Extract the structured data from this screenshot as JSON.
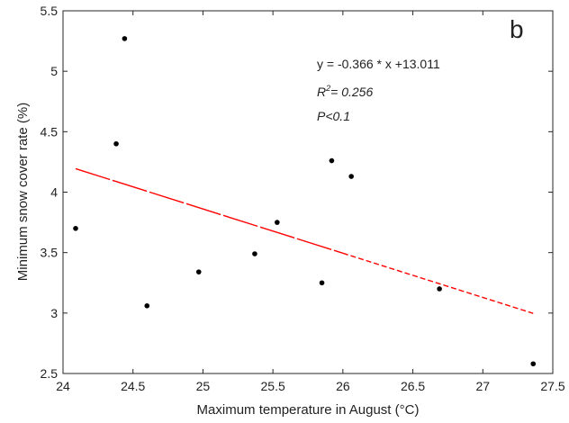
{
  "chart_data": {
    "type": "scatter",
    "panel_label": "b",
    "xlabel": "Maximum temperature in August (°C)",
    "ylabel": "Minimum snow cover rate (%)",
    "xlim": [
      24,
      27.5
    ],
    "ylim": [
      2.5,
      5.5
    ],
    "xticks": [
      24,
      24.5,
      25,
      25.5,
      26,
      26.5,
      27,
      27.5
    ],
    "yticks": [
      2.5,
      3,
      3.5,
      4,
      4.5,
      5,
      5.5
    ],
    "xtick_labels": [
      "24",
      "24.5",
      "25",
      "25.5",
      "26",
      "26.5",
      "27",
      "27.5"
    ],
    "ytick_labels": [
      "2.5",
      "3",
      "3.5",
      "4",
      "4.5",
      "5",
      "5.5"
    ],
    "grid": false,
    "points": [
      {
        "x": 24.09,
        "y": 3.7
      },
      {
        "x": 24.38,
        "y": 4.4
      },
      {
        "x": 24.44,
        "y": 5.27
      },
      {
        "x": 24.6,
        "y": 3.06
      },
      {
        "x": 24.97,
        "y": 3.34
      },
      {
        "x": 25.37,
        "y": 3.49
      },
      {
        "x": 25.53,
        "y": 3.75
      },
      {
        "x": 25.85,
        "y": 3.25
      },
      {
        "x": 25.92,
        "y": 4.26
      },
      {
        "x": 26.06,
        "y": 4.13
      },
      {
        "x": 26.69,
        "y": 3.2
      },
      {
        "x": 27.36,
        "y": 2.58
      }
    ],
    "fit_line": {
      "slope": -0.366,
      "intercept": 13.011,
      "x_start": 24.09,
      "x_end": 27.36,
      "color": "#ff0000"
    },
    "annotations": {
      "equation": "y = -0.366 * x +13.011",
      "r2_prefix": "R",
      "r2_sup": "2",
      "r2_suffix": "= 0.256",
      "p_value": "P<0.1"
    }
  }
}
